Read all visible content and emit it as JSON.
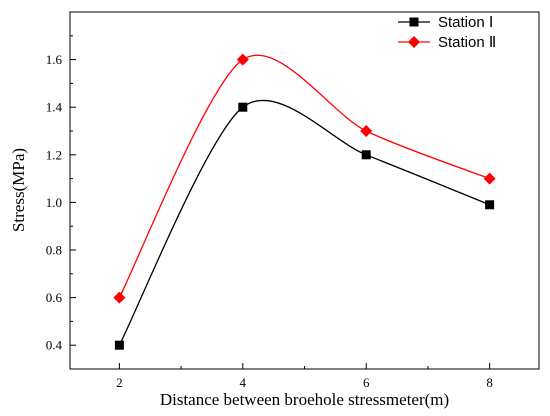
{
  "chart_data": {
    "type": "line",
    "title": "",
    "xlabel": "Distance between  broehole stressmeter(m)",
    "ylabel": "Stress(MPa)",
    "x": [
      2,
      4,
      6,
      8
    ],
    "xlim": [
      1.2,
      8.8
    ],
    "ylim": [
      0.3,
      1.8
    ],
    "x_ticks": [
      2,
      4,
      6,
      8
    ],
    "y_ticks": [
      0.4,
      0.6,
      0.8,
      1.0,
      1.2,
      1.4,
      1.6
    ],
    "x_tick_labels": [
      "2",
      "4",
      "6",
      "8"
    ],
    "y_tick_labels": [
      "0.4",
      "0.6",
      "0.8",
      "1.0",
      "1.2",
      "1.4",
      "1.6"
    ],
    "grid": false,
    "legend_position": "top-right",
    "series": [
      {
        "name": "Station Ⅰ",
        "values": [
          0.4,
          1.4,
          1.2,
          0.99
        ],
        "color": "#000000",
        "marker": "square"
      },
      {
        "name": "Station Ⅱ",
        "values": [
          0.6,
          1.6,
          1.3,
          1.1
        ],
        "color": "#ff0000",
        "marker": "diamond"
      }
    ]
  }
}
